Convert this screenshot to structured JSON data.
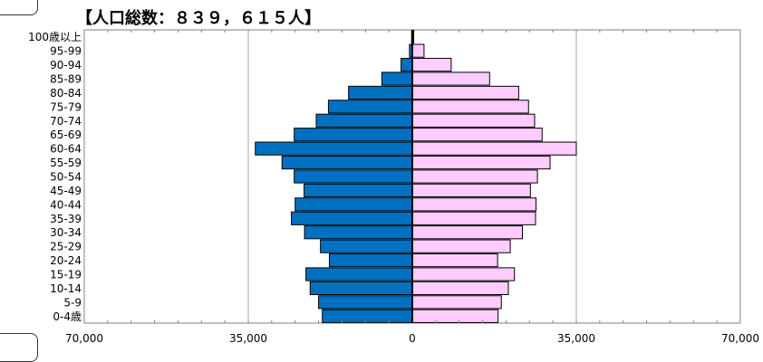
{
  "chart_data": {
    "type": "bar",
    "title": "【人口総数：８３９，６１５人】",
    "categories": [
      "0-4歳",
      "5-9",
      "10-14",
      "15-19",
      "20-24",
      "25-29",
      "30-34",
      "35-39",
      "40-44",
      "45-49",
      "50-54",
      "55-59",
      "60-64",
      "65-69",
      "70-74",
      "75-79",
      "80-84",
      "85-89",
      "90-94",
      "95-99",
      "100歳以上"
    ],
    "series": [
      {
        "side": "left",
        "color": "#0070c0",
        "values": [
          19200,
          20000,
          21800,
          22700,
          17700,
          19600,
          23000,
          25800,
          25000,
          23100,
          25200,
          27800,
          33500,
          25200,
          20500,
          17900,
          13600,
          6500,
          2400,
          600,
          150
        ]
      },
      {
        "side": "right",
        "color": "#ffccff",
        "values": [
          18300,
          19000,
          20500,
          21800,
          18200,
          20900,
          23500,
          26300,
          26400,
          25200,
          26700,
          29400,
          35000,
          27700,
          26100,
          24800,
          22700,
          16500,
          8300,
          2500,
          300
        ]
      }
    ],
    "xticks": [
      "70,000",
      "35,000",
      "0",
      "35,000",
      "70,000"
    ],
    "xlim": [
      -70000,
      70000
    ],
    "grid": true
  }
}
